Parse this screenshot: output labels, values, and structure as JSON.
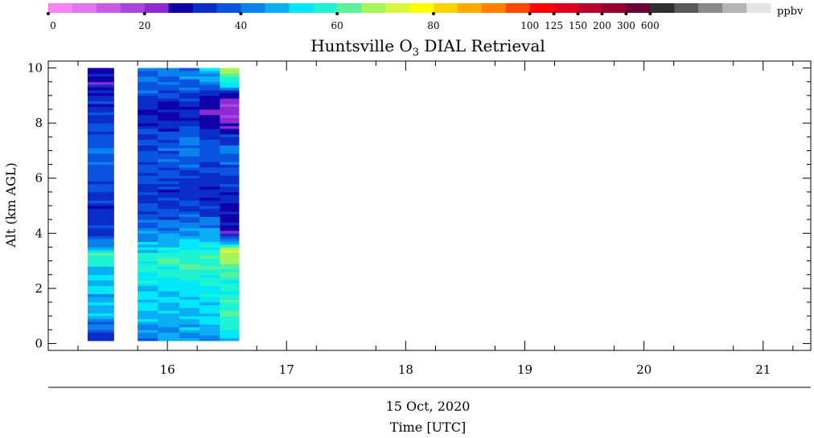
{
  "chart_data": {
    "type": "heatmap",
    "title_prefix": "Huntsville O",
    "title_sub": "3",
    "title_suffix": " DIAL Retrieval",
    "ylabel": "Alt (km AGL)",
    "xlabel": "Time [UTC]",
    "date_label": "15 Oct, 2020",
    "xlim": [
      15.0,
      21.4
    ],
    "ylim": [
      -0.25,
      10.25
    ],
    "x_ticks": [
      "16",
      "17",
      "18",
      "19",
      "20",
      "21"
    ],
    "y_ticks": [
      "0",
      "2",
      "4",
      "6",
      "8",
      "10"
    ],
    "colorbar": {
      "unit": "ppbv",
      "tick_labels": [
        "0",
        "20",
        "40",
        "60",
        "80",
        "100",
        "125",
        "150",
        "200",
        "300",
        "600"
      ],
      "colors": [
        "#f682f4",
        "#e274ee",
        "#c95ae6",
        "#a945de",
        "#8d2ad2",
        "#0f00a8",
        "#0a2cc8",
        "#0a54e0",
        "#0a82ec",
        "#0aaef4",
        "#00e8fa",
        "#1ef4d2",
        "#5af298",
        "#a6f45a",
        "#d8f63a",
        "#ffff00",
        "#ffd200",
        "#ffaa00",
        "#ff8000",
        "#ff4600",
        "#ff0000",
        "#e0001e",
        "#b8002a",
        "#960030",
        "#6a0034",
        "#303030",
        "#5a5a5a",
        "#8a8a8a",
        "#b4b4b4",
        "#e4e4e4"
      ]
    },
    "columns": [
      {
        "x0": 15.33,
        "x1": 15.55,
        "profile": [
          [
            0.1,
            32
          ],
          [
            0.3,
            33
          ],
          [
            0.6,
            41
          ],
          [
            1.0,
            46
          ],
          [
            1.5,
            48
          ],
          [
            2.0,
            49
          ],
          [
            2.5,
            50
          ],
          [
            2.8,
            51
          ],
          [
            3.0,
            57
          ],
          [
            3.2,
            62
          ],
          [
            3.4,
            50
          ],
          [
            3.6,
            45
          ],
          [
            4.0,
            32
          ],
          [
            4.5,
            33
          ],
          [
            5.0,
            31
          ],
          [
            5.5,
            36
          ],
          [
            6.0,
            37
          ],
          [
            6.5,
            38
          ],
          [
            7.0,
            40
          ],
          [
            7.5,
            37
          ],
          [
            8.0,
            36
          ],
          [
            8.5,
            34
          ],
          [
            9.0,
            31
          ],
          [
            9.5,
            27
          ],
          [
            10.0,
            26
          ]
        ]
      },
      {
        "x0": 15.75,
        "x1": 15.92,
        "profile": [
          [
            0.1,
            43
          ],
          [
            0.5,
            44
          ],
          [
            1.0,
            49
          ],
          [
            1.5,
            51
          ],
          [
            2.0,
            50
          ],
          [
            2.5,
            55
          ],
          [
            2.9,
            58
          ],
          [
            3.2,
            57
          ],
          [
            3.5,
            50
          ],
          [
            4.0,
            42
          ],
          [
            4.5,
            38
          ],
          [
            5.0,
            35
          ],
          [
            5.5,
            34
          ],
          [
            6.0,
            36
          ],
          [
            6.5,
            37
          ],
          [
            7.0,
            36
          ],
          [
            7.5,
            36
          ],
          [
            8.0,
            32
          ],
          [
            8.5,
            29
          ],
          [
            9.0,
            37
          ],
          [
            9.5,
            39
          ],
          [
            10.0,
            41
          ]
        ]
      },
      {
        "x0": 15.92,
        "x1": 16.1,
        "profile": [
          [
            0.1,
            44
          ],
          [
            0.5,
            45
          ],
          [
            1.0,
            48
          ],
          [
            1.5,
            50
          ],
          [
            2.0,
            51
          ],
          [
            2.5,
            56
          ],
          [
            2.9,
            59
          ],
          [
            3.2,
            58
          ],
          [
            3.5,
            51
          ],
          [
            4.0,
            44
          ],
          [
            4.5,
            38
          ],
          [
            5.0,
            33
          ],
          [
            5.5,
            32
          ],
          [
            6.0,
            35
          ],
          [
            6.5,
            37
          ],
          [
            7.0,
            38
          ],
          [
            7.5,
            36
          ],
          [
            8.0,
            30
          ],
          [
            8.5,
            28
          ],
          [
            9.0,
            35
          ],
          [
            9.5,
            40
          ],
          [
            10.0,
            42
          ]
        ]
      },
      {
        "x0": 16.1,
        "x1": 16.27,
        "profile": [
          [
            0.1,
            44
          ],
          [
            0.5,
            46
          ],
          [
            1.0,
            48
          ],
          [
            1.5,
            50
          ],
          [
            2.0,
            52
          ],
          [
            2.5,
            57
          ],
          [
            2.9,
            59
          ],
          [
            3.2,
            58
          ],
          [
            3.5,
            53
          ],
          [
            4.0,
            45
          ],
          [
            4.5,
            40
          ],
          [
            5.0,
            35
          ],
          [
            5.5,
            32
          ],
          [
            6.0,
            34
          ],
          [
            6.5,
            38
          ],
          [
            7.0,
            42
          ],
          [
            7.5,
            40
          ],
          [
            8.0,
            33
          ],
          [
            8.5,
            29
          ],
          [
            9.0,
            34
          ],
          [
            9.5,
            41
          ],
          [
            10.0,
            44
          ]
        ]
      },
      {
        "x0": 16.27,
        "x1": 16.44,
        "profile": [
          [
            0.1,
            45
          ],
          [
            0.5,
            47
          ],
          [
            1.0,
            50
          ],
          [
            1.5,
            51
          ],
          [
            2.0,
            53
          ],
          [
            2.5,
            57
          ],
          [
            2.9,
            60
          ],
          [
            3.2,
            59
          ],
          [
            3.5,
            54
          ],
          [
            4.0,
            46
          ],
          [
            4.5,
            39
          ],
          [
            5.0,
            33
          ],
          [
            5.5,
            31
          ],
          [
            6.0,
            33
          ],
          [
            6.5,
            36
          ],
          [
            7.0,
            38
          ],
          [
            7.5,
            34
          ],
          [
            8.0,
            28
          ],
          [
            8.5,
            25
          ],
          [
            9.0,
            29
          ],
          [
            9.5,
            44
          ],
          [
            10.0,
            52
          ]
        ]
      },
      {
        "x0": 16.44,
        "x1": 16.6,
        "profile": [
          [
            0.1,
            47
          ],
          [
            0.5,
            55
          ],
          [
            1.0,
            60
          ],
          [
            1.5,
            58
          ],
          [
            2.0,
            56
          ],
          [
            2.5,
            60
          ],
          [
            2.9,
            63
          ],
          [
            3.2,
            72
          ],
          [
            3.5,
            64
          ],
          [
            3.7,
            45
          ],
          [
            4.0,
            28
          ],
          [
            4.5,
            27
          ],
          [
            5.0,
            29
          ],
          [
            5.5,
            32
          ],
          [
            6.0,
            34
          ],
          [
            6.5,
            38
          ],
          [
            7.0,
            40
          ],
          [
            7.5,
            33
          ],
          [
            8.0,
            22
          ],
          [
            8.5,
            20
          ],
          [
            9.0,
            25
          ],
          [
            9.5,
            57
          ],
          [
            10.0,
            68
          ]
        ]
      }
    ]
  }
}
